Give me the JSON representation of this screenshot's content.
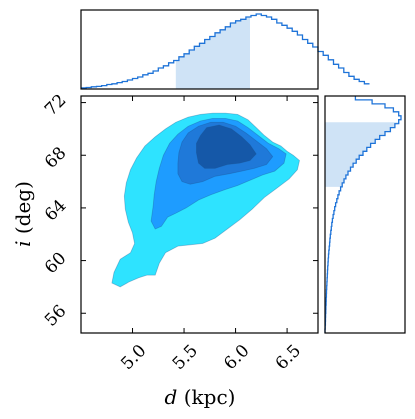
{
  "chart_data": {
    "type": "corner-plot",
    "panels": {
      "joint": {
        "type": "filled-contour",
        "xlabel": "d (kpc)",
        "ylabel": "i (deg)",
        "xlabel_var": "d",
        "xlabel_unit": " (kpc)",
        "ylabel_var": "i",
        "ylabel_unit": " (deg)",
        "xlim": [
          4.5,
          6.8
        ],
        "ylim": [
          54.5,
          72.5
        ],
        "xticks": [
          "5.0",
          "5.5",
          "6.0",
          "6.5"
        ],
        "yticks": [
          "56",
          "60",
          "64",
          "68",
          "72"
        ],
        "levels": [
          {
            "color": "#2ee3ff",
            "points": [
              [
                5.02,
                61.3
              ],
              [
                4.98,
                60.6
              ],
              [
                4.88,
                60.1
              ],
              [
                4.82,
                59.1
              ],
              [
                4.8,
                58.3
              ],
              [
                4.88,
                58.0
              ],
              [
                4.97,
                58.4
              ],
              [
                5.06,
                58.7
              ],
              [
                5.14,
                58.9
              ],
              [
                5.22,
                58.9
              ],
              [
                5.26,
                59.8
              ],
              [
                5.32,
                60.6
              ],
              [
                5.44,
                61.1
              ],
              [
                5.56,
                61.2
              ],
              [
                5.68,
                61.3
              ],
              [
                5.8,
                61.7
              ],
              [
                5.92,
                62.4
              ],
              [
                6.04,
                63.1
              ],
              [
                6.16,
                63.9
              ],
              [
                6.28,
                64.8
              ],
              [
                6.4,
                65.5
              ],
              [
                6.52,
                66.2
              ],
              [
                6.6,
                66.9
              ],
              [
                6.62,
                67.6
              ],
              [
                6.56,
                68.0
              ],
              [
                6.5,
                68.3
              ],
              [
                6.44,
                68.7
              ],
              [
                6.36,
                69.0
              ],
              [
                6.28,
                69.5
              ],
              [
                6.2,
                70.1
              ],
              [
                6.12,
                70.7
              ],
              [
                6.02,
                71.1
              ],
              [
                5.9,
                71.2
              ],
              [
                5.78,
                71.2
              ],
              [
                5.66,
                71.1
              ],
              [
                5.54,
                70.9
              ],
              [
                5.42,
                70.5
              ],
              [
                5.32,
                70.0
              ],
              [
                5.22,
                69.4
              ],
              [
                5.12,
                68.7
              ],
              [
                5.04,
                67.8
              ],
              [
                4.98,
                66.9
              ],
              [
                4.94,
                65.9
              ],
              [
                4.92,
                64.9
              ],
              [
                4.93,
                63.9
              ],
              [
                4.96,
                62.9
              ],
              [
                5.0,
                62.1
              ]
            ]
          },
          {
            "color": "#1e9cff",
            "points": [
              [
                5.2,
                64.1
              ],
              [
                5.18,
                63.0
              ],
              [
                5.22,
                62.4
              ],
              [
                5.28,
                62.6
              ],
              [
                5.34,
                63.3
              ],
              [
                5.42,
                63.6
              ],
              [
                5.52,
                64.0
              ],
              [
                5.64,
                64.6
              ],
              [
                5.76,
                65.0
              ],
              [
                5.9,
                65.4
              ],
              [
                6.02,
                65.7
              ],
              [
                6.14,
                66.1
              ],
              [
                6.26,
                66.5
              ],
              [
                6.38,
                66.8
              ],
              [
                6.47,
                67.4
              ],
              [
                6.49,
                68.1
              ],
              [
                6.42,
                68.5
              ],
              [
                6.32,
                68.9
              ],
              [
                6.22,
                69.5
              ],
              [
                6.12,
                70.1
              ],
              [
                6.02,
                70.6
              ],
              [
                5.9,
                70.8
              ],
              [
                5.78,
                70.8
              ],
              [
                5.66,
                70.6
              ],
              [
                5.54,
                70.2
              ],
              [
                5.44,
                69.6
              ],
              [
                5.36,
                68.9
              ],
              [
                5.3,
                68.0
              ],
              [
                5.26,
                67.0
              ],
              [
                5.23,
                66.0
              ],
              [
                5.21,
                65.0
              ]
            ]
          },
          {
            "color": "#1f79d9",
            "points": [
              [
                5.44,
                66.6
              ],
              [
                5.48,
                66.0
              ],
              [
                5.56,
                65.8
              ],
              [
                5.68,
                66.0
              ],
              [
                5.8,
                66.4
              ],
              [
                5.94,
                66.6
              ],
              [
                6.06,
                66.8
              ],
              [
                6.18,
                67.0
              ],
              [
                6.3,
                67.3
              ],
              [
                6.36,
                67.9
              ],
              [
                6.3,
                68.5
              ],
              [
                6.2,
                69.1
              ],
              [
                6.1,
                69.7
              ],
              [
                6.0,
                70.2
              ],
              [
                5.88,
                70.5
              ],
              [
                5.76,
                70.5
              ],
              [
                5.64,
                70.2
              ],
              [
                5.54,
                69.7
              ],
              [
                5.48,
                69.0
              ],
              [
                5.45,
                68.2
              ],
              [
                5.44,
                67.4
              ]
            ]
          },
          {
            "color": "#1558a8",
            "points": [
              [
                5.62,
                68.2
              ],
              [
                5.64,
                67.4
              ],
              [
                5.7,
                67.0
              ],
              [
                5.8,
                67.0
              ],
              [
                5.92,
                67.3
              ],
              [
                6.04,
                67.4
              ],
              [
                6.14,
                67.6
              ],
              [
                6.2,
                68.1
              ],
              [
                6.14,
                68.8
              ],
              [
                6.06,
                69.4
              ],
              [
                5.96,
                70.0
              ],
              [
                5.84,
                70.3
              ],
              [
                5.72,
                70.1
              ],
              [
                5.66,
                69.5
              ],
              [
                5.62,
                68.9
              ]
            ]
          }
        ]
      },
      "marginal_d": {
        "type": "histogram",
        "xlim": [
          4.5,
          6.8
        ],
        "bin_edges_start": 4.5,
        "bin_width": 0.05,
        "counts": [
          0.015,
          0.02,
          0.03,
          0.035,
          0.045,
          0.06,
          0.07,
          0.085,
          0.1,
          0.12,
          0.14,
          0.16,
          0.19,
          0.21,
          0.24,
          0.28,
          0.31,
          0.35,
          0.38,
          0.43,
          0.47,
          0.52,
          0.57,
          0.61,
          0.66,
          0.7,
          0.75,
          0.79,
          0.83,
          0.88,
          0.91,
          0.93,
          0.96,
          0.98,
          1.0,
          0.98,
          0.96,
          0.93,
          0.88,
          0.85,
          0.81,
          0.77,
          0.72,
          0.66,
          0.61,
          0.56,
          0.5,
          0.45,
          0.39,
          0.33,
          0.28,
          0.22,
          0.17,
          0.13,
          0.1,
          0.07
        ],
        "shaded_range": [
          5.42,
          6.14
        ],
        "line_color": "#1e73d8",
        "fill_color": "#cfe3f6"
      },
      "marginal_i": {
        "type": "histogram",
        "orientation": "horizontal",
        "ylim": [
          54.5,
          72.5
        ],
        "bin_edges_start": 54.5,
        "bin_width": 0.3,
        "counts": [
          0,
          0.003,
          0.005,
          0.006,
          0.008,
          0.01,
          0.012,
          0.014,
          0.016,
          0.018,
          0.02,
          0.023,
          0.025,
          0.028,
          0.03,
          0.033,
          0.036,
          0.039,
          0.042,
          0.046,
          0.05,
          0.055,
          0.06,
          0.065,
          0.07,
          0.076,
          0.083,
          0.09,
          0.098,
          0.107,
          0.117,
          0.128,
          0.14,
          0.155,
          0.17,
          0.186,
          0.205,
          0.226,
          0.25,
          0.275,
          0.302,
          0.335,
          0.37,
          0.41,
          0.45,
          0.5,
          0.55,
          0.6,
          0.66,
          0.72,
          0.79,
          0.86,
          0.92,
          0.97,
          1.0,
          0.97,
          0.9,
          0.79,
          0.62,
          0.4
        ],
        "shaded_range": [
          65.6,
          70.5
        ],
        "line_color": "#1e73d8",
        "fill_color": "#cfe3f6"
      }
    }
  }
}
